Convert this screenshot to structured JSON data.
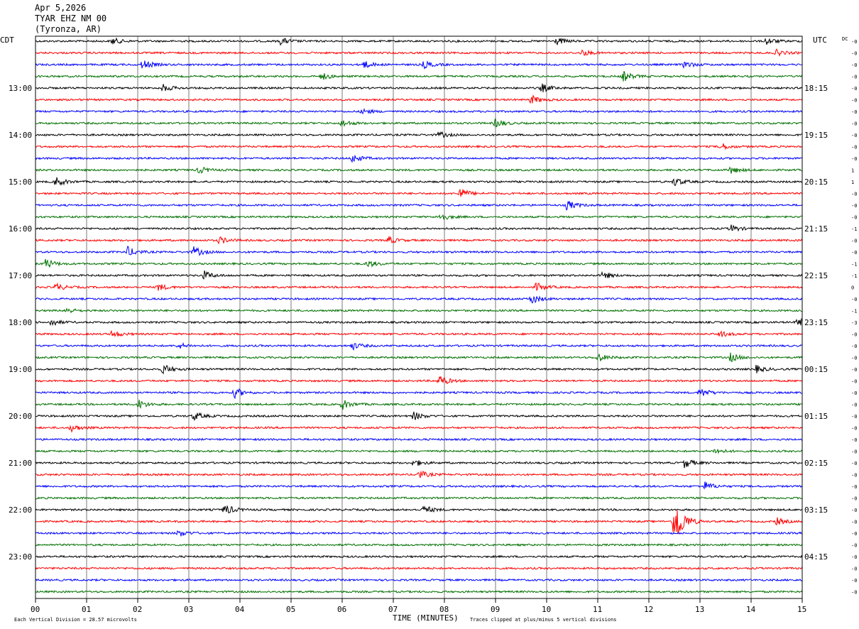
{
  "header": {
    "date": "Apr 5,2026",
    "station": "TYAR EHZ NM 00",
    "location": "(Tyronza, AR)"
  },
  "chart_data": {
    "type": "line",
    "title": "",
    "xlabel": "TIME (MINUTES)",
    "ylabel": "",
    "xlim": [
      0,
      15
    ],
    "x_ticks": [
      "00",
      "01",
      "02",
      "03",
      "04",
      "05",
      "06",
      "07",
      "08",
      "09",
      "10",
      "11",
      "12",
      "13",
      "14",
      "15"
    ],
    "left_timezone": "CDT",
    "right_timezone": "UTC",
    "dc_header": "DC",
    "trace_colors": [
      "#000000",
      "#ff0000",
      "#0000ff",
      "#007000"
    ],
    "left_hour_labels": [
      {
        "trace": 4,
        "label": "13:00"
      },
      {
        "trace": 8,
        "label": "14:00"
      },
      {
        "trace": 12,
        "label": "15:00"
      },
      {
        "trace": 16,
        "label": "16:00"
      },
      {
        "trace": 20,
        "label": "17:00"
      },
      {
        "trace": 24,
        "label": "18:00"
      },
      {
        "trace": 28,
        "label": "19:00"
      },
      {
        "trace": 32,
        "label": "20:00"
      },
      {
        "trace": 36,
        "label": "21:00"
      },
      {
        "trace": 40,
        "label": "22:00"
      },
      {
        "trace": 44,
        "label": "23:00"
      }
    ],
    "right_hour_labels": [
      {
        "trace": 4,
        "label": "18:15"
      },
      {
        "trace": 8,
        "label": "19:15"
      },
      {
        "trace": 12,
        "label": "20:15"
      },
      {
        "trace": 16,
        "label": "21:15"
      },
      {
        "trace": 20,
        "label": "22:15"
      },
      {
        "trace": 24,
        "label": "23:15"
      },
      {
        "trace": 28,
        "label": "00:15"
      },
      {
        "trace": 32,
        "label": "01:15"
      },
      {
        "trace": 36,
        "label": "02:15"
      },
      {
        "trace": 40,
        "label": "03:15"
      },
      {
        "trace": 44,
        "label": "04:15"
      }
    ],
    "dc_offsets": [
      "-0",
      "-0",
      "-0",
      "-0",
      "-0",
      "-0",
      "-0",
      "-0",
      "-0",
      "-0",
      "-0",
      "1",
      "1",
      "-0",
      "-0",
      "-0",
      "-1",
      "-0",
      "-0",
      "-1",
      "-1",
      "0",
      "-0",
      "-1",
      "-3",
      "-0",
      "-0",
      "-0",
      "-0",
      "-0",
      "-0",
      "-0",
      "-0",
      "-0",
      "-0",
      "-0",
      "-0",
      "-0",
      "-0",
      "-0",
      "-0",
      "-0",
      "-0",
      "-0",
      "-0",
      "-0",
      "-0",
      "-0"
    ],
    "trace_count": 48,
    "events": [
      {
        "trace": 0,
        "minute": 1.5,
        "amp": 5
      },
      {
        "trace": 0,
        "minute": 4.8,
        "amp": 5
      },
      {
        "trace": 0,
        "minute": 10.2,
        "amp": 5
      },
      {
        "trace": 0,
        "minute": 14.3,
        "amp": 5
      },
      {
        "trace": 1,
        "minute": 10.7,
        "amp": 4
      },
      {
        "trace": 1,
        "minute": 14.5,
        "amp": 4
      },
      {
        "trace": 2,
        "minute": 2.1,
        "amp": 7
      },
      {
        "trace": 2,
        "minute": 6.4,
        "amp": 6
      },
      {
        "trace": 2,
        "minute": 7.6,
        "amp": 5
      },
      {
        "trace": 2,
        "minute": 12.7,
        "amp": 5
      },
      {
        "trace": 3,
        "minute": 5.6,
        "amp": 5
      },
      {
        "trace": 3,
        "minute": 11.5,
        "amp": 7
      },
      {
        "trace": 4,
        "minute": 2.5,
        "amp": 5
      },
      {
        "trace": 4,
        "minute": 9.9,
        "amp": 6
      },
      {
        "trace": 5,
        "minute": 9.7,
        "amp": 6
      },
      {
        "trace": 6,
        "minute": 6.4,
        "amp": 4
      },
      {
        "trace": 7,
        "minute": 6.0,
        "amp": 5
      },
      {
        "trace": 7,
        "minute": 9.0,
        "amp": 6
      },
      {
        "trace": 8,
        "minute": 7.9,
        "amp": 4
      },
      {
        "trace": 9,
        "minute": 13.4,
        "amp": 5
      },
      {
        "trace": 10,
        "minute": 6.2,
        "amp": 6
      },
      {
        "trace": 11,
        "minute": 3.2,
        "amp": 5
      },
      {
        "trace": 11,
        "minute": 13.6,
        "amp": 5
      },
      {
        "trace": 12,
        "minute": 0.4,
        "amp": 7
      },
      {
        "trace": 12,
        "minute": 12.5,
        "amp": 6
      },
      {
        "trace": 13,
        "minute": 8.3,
        "amp": 8
      },
      {
        "trace": 14,
        "minute": 10.4,
        "amp": 7
      },
      {
        "trace": 15,
        "minute": 7.9,
        "amp": 6
      },
      {
        "trace": 16,
        "minute": 13.6,
        "amp": 5
      },
      {
        "trace": 17,
        "minute": 3.6,
        "amp": 5
      },
      {
        "trace": 17,
        "minute": 6.9,
        "amp": 5
      },
      {
        "trace": 18,
        "minute": 1.8,
        "amp": 7
      },
      {
        "trace": 18,
        "minute": 3.1,
        "amp": 7
      },
      {
        "trace": 19,
        "minute": 0.2,
        "amp": 7
      },
      {
        "trace": 19,
        "minute": 6.5,
        "amp": 5
      },
      {
        "trace": 20,
        "minute": 3.3,
        "amp": 6
      },
      {
        "trace": 20,
        "minute": 11.1,
        "amp": 5
      },
      {
        "trace": 21,
        "minute": 0.4,
        "amp": 5
      },
      {
        "trace": 21,
        "minute": 2.4,
        "amp": 5
      },
      {
        "trace": 21,
        "minute": 9.8,
        "amp": 6
      },
      {
        "trace": 22,
        "minute": 9.7,
        "amp": 7
      },
      {
        "trace": 23,
        "minute": 0.6,
        "amp": 4
      },
      {
        "trace": 24,
        "minute": 0.3,
        "amp": 5
      },
      {
        "trace": 24,
        "minute": 14.9,
        "amp": 6
      },
      {
        "trace": 25,
        "minute": 1.5,
        "amp": 5
      },
      {
        "trace": 25,
        "minute": 13.4,
        "amp": 4
      },
      {
        "trace": 26,
        "minute": 2.8,
        "amp": 4
      },
      {
        "trace": 26,
        "minute": 6.2,
        "amp": 5
      },
      {
        "trace": 27,
        "minute": 11.0,
        "amp": 6
      },
      {
        "trace": 27,
        "minute": 13.6,
        "amp": 6
      },
      {
        "trace": 28,
        "minute": 2.5,
        "amp": 7
      },
      {
        "trace": 28,
        "minute": 14.1,
        "amp": 5
      },
      {
        "trace": 29,
        "minute": 7.9,
        "amp": 8
      },
      {
        "trace": 30,
        "minute": 3.9,
        "amp": 7
      },
      {
        "trace": 30,
        "minute": 13.0,
        "amp": 7
      },
      {
        "trace": 31,
        "minute": 2.0,
        "amp": 7
      },
      {
        "trace": 31,
        "minute": 6.0,
        "amp": 7
      },
      {
        "trace": 32,
        "minute": 3.1,
        "amp": 6
      },
      {
        "trace": 32,
        "minute": 7.4,
        "amp": 6
      },
      {
        "trace": 33,
        "minute": 0.7,
        "amp": 5
      },
      {
        "trace": 35,
        "minute": 13.3,
        "amp": 4
      },
      {
        "trace": 36,
        "minute": 7.4,
        "amp": 5
      },
      {
        "trace": 36,
        "minute": 12.7,
        "amp": 7
      },
      {
        "trace": 37,
        "minute": 7.5,
        "amp": 6
      },
      {
        "trace": 38,
        "minute": 13.1,
        "amp": 6
      },
      {
        "trace": 40,
        "minute": 3.7,
        "amp": 8
      },
      {
        "trace": 40,
        "minute": 7.6,
        "amp": 6
      },
      {
        "trace": 41,
        "minute": 12.5,
        "amp": 40
      },
      {
        "trace": 41,
        "minute": 14.5,
        "amp": 5
      },
      {
        "trace": 42,
        "minute": 2.8,
        "amp": 5
      }
    ]
  },
  "footer": {
    "scale_text": "Each Vertical Division =   28.57 microvolts",
    "clip_text": "Traces clipped at plus/minus 5 vertical divisions"
  }
}
